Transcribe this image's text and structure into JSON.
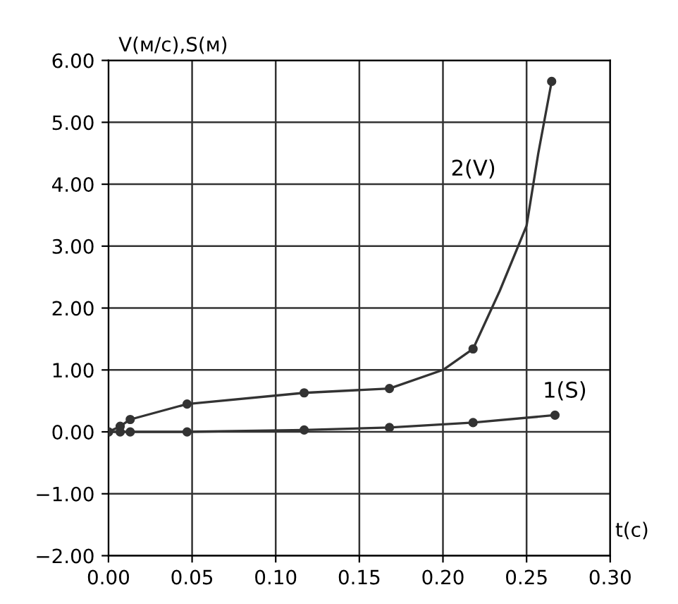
{
  "chart_data": {
    "type": "line",
    "xlabel": "t(с)",
    "ylabel": "V(м/с),S(м)",
    "xlim": [
      0,
      0.3
    ],
    "xticks": [
      {
        "value": 0,
        "label": "0.00"
      },
      {
        "value": 0.05,
        "label": "0.05"
      },
      {
        "value": 0.1,
        "label": "0.10"
      },
      {
        "value": 0.15,
        "label": "0.15"
      },
      {
        "value": 0.2,
        "label": "0.20"
      },
      {
        "value": 0.25,
        "label": "0.25"
      },
      {
        "value": 0.3,
        "label": "0.30"
      }
    ],
    "ylim": [
      -2,
      6
    ],
    "yticks": [
      {
        "value": -2,
        "label": "−2.00"
      },
      {
        "value": -1,
        "label": "−1.00"
      },
      {
        "value": 0,
        "label": "0.00"
      },
      {
        "value": 1,
        "label": "1.00"
      },
      {
        "value": 2,
        "label": "2.00"
      },
      {
        "value": 3,
        "label": "3.00"
      },
      {
        "value": 4,
        "label": "4.00"
      },
      {
        "value": 5,
        "label": "5.00"
      },
      {
        "value": 6,
        "label": "6.00"
      }
    ],
    "grid": true,
    "marker": "none",
    "line_style": "solid",
    "series": [
      {
        "color": "#333333",
        "x": [
          0,
          0.007,
          0.013,
          0.047,
          0.117,
          0.168,
          0.2,
          0.218,
          0.234,
          0.25,
          0.257,
          0.265
        ],
        "values": [
          0,
          0.09,
          0.2,
          0.45,
          0.63,
          0.7,
          1.0,
          1.34,
          2.28,
          3.33,
          4.5,
          5.66
        ]
      },
      {
        "type": "scatter",
        "marker": "circle",
        "color": "#333333",
        "x": [
          0,
          0.007,
          0.013,
          0.047,
          0.117,
          0.168,
          0.218,
          0.265
        ],
        "values": [
          0,
          0.09,
          0.2,
          0.45,
          0.63,
          0.7,
          1.34,
          5.66
        ]
      },
      {
        "color": "#333333",
        "x": [
          0,
          0.007,
          0.013,
          0.047,
          0.117,
          0.168,
          0.218,
          0.267
        ],
        "values": [
          0,
          0,
          0,
          0,
          0.03,
          0.07,
          0.15,
          0.27
        ]
      },
      {
        "type": "scatter",
        "marker": "circle",
        "color": "#333333",
        "x": [
          0,
          0.007,
          0.013,
          0.047,
          0.117,
          0.168,
          0.218,
          0.267
        ],
        "values": [
          0,
          0,
          0,
          0,
          0.03,
          0.07,
          0.15,
          0.27
        ]
      }
    ],
    "annotations": [
      "2(V)",
      "1(S)"
    ]
  }
}
